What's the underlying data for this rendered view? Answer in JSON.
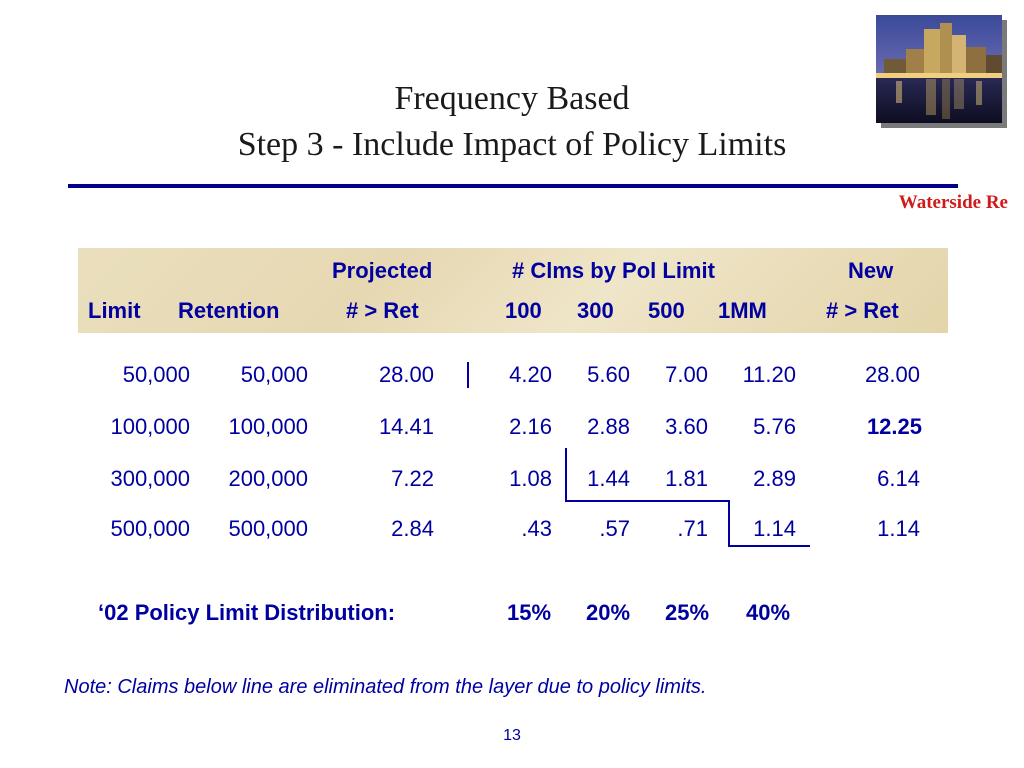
{
  "slide": {
    "title_line1": "Frequency Based",
    "title_line2": "Step 3 - Include Impact of Policy Limits",
    "company": "Waterside Re",
    "photo_alt": "night-cityscape-photo",
    "page_number": "13"
  },
  "table": {
    "header_top": {
      "projected": "Projected",
      "clms_by_pol_limit": "# Clms by Pol Limit",
      "new": "New"
    },
    "header_bottom": {
      "limit": "Limit",
      "retention": "Retention",
      "gt_ret": "# > Ret",
      "c100": "100",
      "c300": "300",
      "c500": "500",
      "c1mm": "1MM",
      "new_gt_ret": "# > Ret"
    },
    "rows": [
      {
        "limit": "50,000",
        "retention": "50,000",
        "projected": "28.00",
        "c100": "4.20",
        "c300": "5.60",
        "c500": "7.00",
        "c1mm": "11.20",
        "new": "28.00"
      },
      {
        "limit": "100,000",
        "retention": "100,000",
        "projected": "14.41",
        "c100": "2.16",
        "c300": "2.88",
        "c500": "3.60",
        "c1mm": "5.76",
        "new": "12.25"
      },
      {
        "limit": "300,000",
        "retention": "200,000",
        "projected": "7.22",
        "c100": "1.08",
        "c300": "1.44",
        "c500": "1.81",
        "c1mm": "2.89",
        "new": "6.14"
      },
      {
        "limit": "500,000",
        "retention": "500,000",
        "projected": "2.84",
        "c100": ".43",
        "c300": ".57",
        "c500": ".71",
        "c1mm": "1.14",
        "new": "1.14"
      }
    ]
  },
  "distribution": {
    "label": "‘02 Policy Limit Distribution:",
    "values": [
      "15%",
      "20%",
      "25%",
      "40%"
    ]
  },
  "note": "Note:  Claims below line are eliminated from the layer due to policy limits.",
  "colors": {
    "text_blue": "#0000a0",
    "rule_blue": "#00008a",
    "company_red": "#d11a1a",
    "header_band": "#e8dcb8"
  }
}
